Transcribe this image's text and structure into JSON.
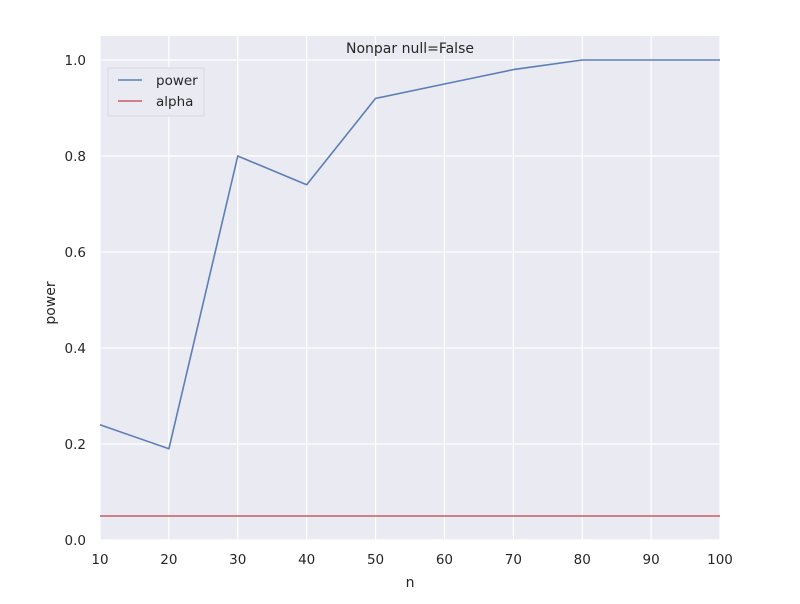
{
  "chart_data": {
    "type": "line",
    "title": "Nonpar null=False",
    "xlabel": "n",
    "ylabel": "power",
    "x": [
      10,
      20,
      30,
      40,
      50,
      60,
      70,
      80,
      90,
      100
    ],
    "xlim": [
      10,
      100
    ],
    "ylim": [
      0.0,
      1.05
    ],
    "xticks": [
      10,
      20,
      30,
      40,
      50,
      60,
      70,
      80,
      90,
      100
    ],
    "yticks": [
      0.0,
      0.2,
      0.4,
      0.6,
      0.8,
      1.0
    ],
    "xtick_labels": [
      "10",
      "20",
      "30",
      "40",
      "50",
      "60",
      "70",
      "80",
      "90",
      "100"
    ],
    "ytick_labels": [
      "0.0",
      "0.2",
      "0.4",
      "0.6",
      "0.8",
      "1.0"
    ],
    "grid": true,
    "legend_position": "top-left",
    "background_color": "#eaeaf2",
    "grid_color": "#ffffff",
    "series": [
      {
        "name": "power",
        "color": "#4c72b0",
        "values": [
          0.24,
          0.19,
          0.8,
          0.74,
          0.92,
          0.95,
          0.98,
          1.0,
          1.0,
          1.0
        ]
      },
      {
        "name": "alpha",
        "color": "#c44e52",
        "values": [
          0.05,
          0.05,
          0.05,
          0.05,
          0.05,
          0.05,
          0.05,
          0.05,
          0.05,
          0.05
        ]
      }
    ]
  }
}
